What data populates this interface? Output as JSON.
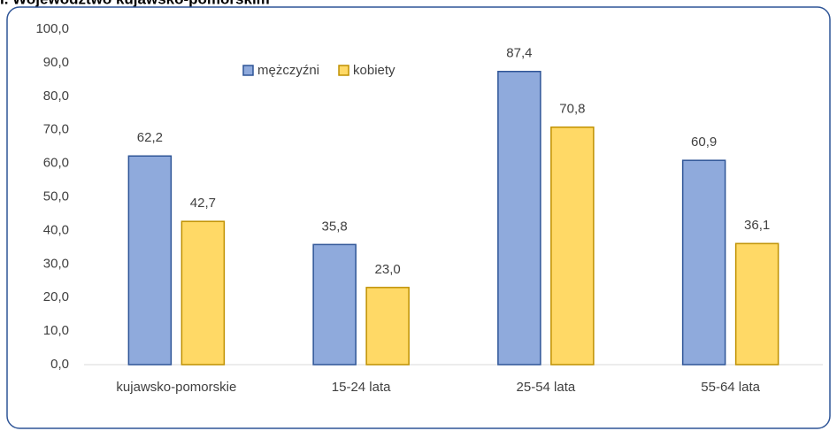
{
  "chart_data": {
    "type": "bar",
    "title": "I. Województwo kujawsko-pomorskim",
    "categories": [
      "kujawsko-pomorskie",
      "15-24 lata",
      "25-54 lata",
      "55-64 lata"
    ],
    "series": [
      {
        "name": "mężczyźni",
        "color": "#8faadc",
        "stroke": "#2f5597",
        "values": [
          62.2,
          35.8,
          87.4,
          60.9
        ],
        "value_labels": [
          "62,2",
          "35,8",
          "87,4",
          "60,9"
        ]
      },
      {
        "name": "kobiety",
        "color": "#ffd966",
        "stroke": "#bf9000",
        "values": [
          42.7,
          23.0,
          70.8,
          36.1
        ],
        "value_labels": [
          "42,7",
          "23,0",
          "70,8",
          "36,1"
        ]
      }
    ],
    "ylim": [
      0,
      100
    ],
    "yticks": [
      {
        "value": 0,
        "label": "0,0"
      },
      {
        "value": 10,
        "label": "10,0"
      },
      {
        "value": 20,
        "label": "20,0"
      },
      {
        "value": 30,
        "label": "30,0"
      },
      {
        "value": 40,
        "label": "40,0"
      },
      {
        "value": 50,
        "label": "50,0"
      },
      {
        "value": 60,
        "label": "60,0"
      },
      {
        "value": 70,
        "label": "70,0"
      },
      {
        "value": 80,
        "label": "80,0"
      },
      {
        "value": 90,
        "label": "90,0"
      },
      {
        "value": 100,
        "label": "100,0"
      }
    ],
    "grid": false,
    "legend": "top"
  }
}
